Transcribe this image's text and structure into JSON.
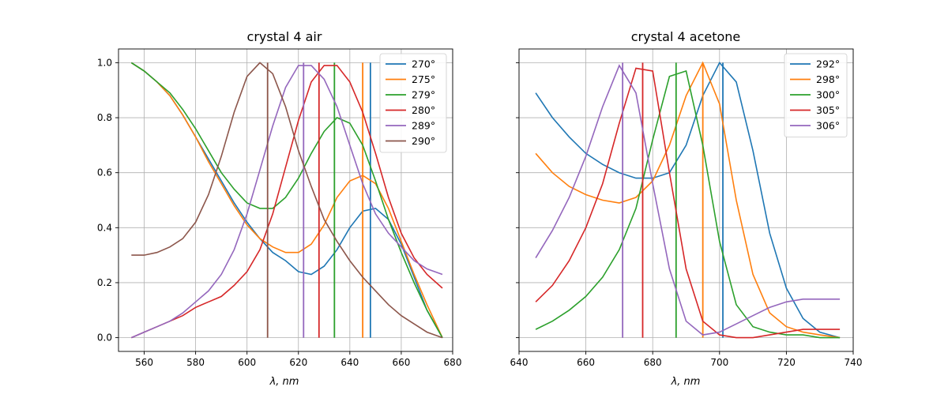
{
  "chart_data": [
    {
      "type": "line",
      "title": "crystal 4 air",
      "xlabel": "λ, nm",
      "ylabel": "",
      "xlim": [
        550,
        680
      ],
      "ylim": [
        -0.05,
        1.05
      ],
      "xticks": [
        560,
        580,
        600,
        620,
        640,
        660,
        680
      ],
      "yticks": [
        0.0,
        0.2,
        0.4,
        0.6,
        0.8,
        1.0
      ],
      "grid": true,
      "legend_position": "top-right",
      "series": [
        {
          "name": "270°",
          "color": "#1f77b4",
          "vline": 648,
          "x": [
            555,
            560,
            565,
            570,
            575,
            580,
            585,
            590,
            595,
            600,
            605,
            610,
            615,
            620,
            625,
            630,
            635,
            640,
            645,
            650,
            655,
            660,
            665,
            670,
            676
          ],
          "y": [
            1.0,
            0.97,
            0.93,
            0.88,
            0.81,
            0.73,
            0.65,
            0.57,
            0.49,
            0.42,
            0.36,
            0.31,
            0.28,
            0.24,
            0.23,
            0.26,
            0.32,
            0.4,
            0.46,
            0.47,
            0.43,
            0.34,
            0.22,
            0.1,
            0.0
          ]
        },
        {
          "name": "275°",
          "color": "#ff7f0e",
          "vline": 645,
          "x": [
            555,
            560,
            565,
            570,
            575,
            580,
            585,
            590,
            595,
            600,
            605,
            610,
            615,
            620,
            625,
            630,
            635,
            640,
            645,
            650,
            655,
            660,
            665,
            670,
            676
          ],
          "y": [
            1.0,
            0.97,
            0.93,
            0.88,
            0.81,
            0.73,
            0.64,
            0.56,
            0.48,
            0.41,
            0.36,
            0.33,
            0.31,
            0.31,
            0.34,
            0.41,
            0.51,
            0.57,
            0.59,
            0.56,
            0.47,
            0.35,
            0.23,
            0.12,
            0.0
          ]
        },
        {
          "name": "279°",
          "color": "#2ca02c",
          "vline": 634,
          "x": [
            555,
            560,
            565,
            570,
            575,
            580,
            585,
            590,
            595,
            600,
            605,
            610,
            615,
            620,
            625,
            630,
            635,
            640,
            645,
            650,
            655,
            660,
            665,
            670,
            676
          ],
          "y": [
            1.0,
            0.97,
            0.93,
            0.89,
            0.83,
            0.76,
            0.68,
            0.6,
            0.54,
            0.49,
            0.47,
            0.47,
            0.51,
            0.58,
            0.67,
            0.75,
            0.8,
            0.78,
            0.7,
            0.57,
            0.43,
            0.31,
            0.2,
            0.1,
            0.0
          ]
        },
        {
          "name": "280°",
          "color": "#d62728",
          "vline": 628,
          "x": [
            555,
            560,
            565,
            570,
            575,
            580,
            585,
            590,
            595,
            600,
            605,
            610,
            615,
            620,
            625,
            630,
            635,
            640,
            645,
            650,
            655,
            660,
            665,
            670,
            676
          ],
          "y": [
            0.0,
            0.02,
            0.04,
            0.06,
            0.08,
            0.11,
            0.13,
            0.15,
            0.19,
            0.24,
            0.32,
            0.45,
            0.62,
            0.79,
            0.93,
            0.99,
            0.99,
            0.93,
            0.82,
            0.67,
            0.51,
            0.38,
            0.29,
            0.23,
            0.18
          ]
        },
        {
          "name": "289°",
          "color": "#9467bd",
          "vline": 622,
          "x": [
            555,
            560,
            565,
            570,
            575,
            580,
            585,
            590,
            595,
            600,
            605,
            610,
            615,
            620,
            625,
            630,
            635,
            640,
            645,
            650,
            655,
            660,
            665,
            670,
            676
          ],
          "y": [
            0.0,
            0.02,
            0.04,
            0.06,
            0.09,
            0.13,
            0.17,
            0.23,
            0.32,
            0.45,
            0.61,
            0.77,
            0.91,
            0.99,
            0.99,
            0.94,
            0.84,
            0.7,
            0.56,
            0.45,
            0.38,
            0.33,
            0.28,
            0.25,
            0.23
          ]
        },
        {
          "name": "290°",
          "color": "#8c564b",
          "vline": 608,
          "x": [
            555,
            560,
            565,
            570,
            575,
            580,
            585,
            590,
            595,
            600,
            605,
            610,
            615,
            620,
            625,
            630,
            635,
            640,
            645,
            650,
            655,
            660,
            665,
            670,
            676
          ],
          "y": [
            0.3,
            0.3,
            0.31,
            0.33,
            0.36,
            0.42,
            0.52,
            0.66,
            0.82,
            0.95,
            1.0,
            0.96,
            0.84,
            0.68,
            0.55,
            0.43,
            0.35,
            0.28,
            0.22,
            0.17,
            0.12,
            0.08,
            0.05,
            0.02,
            0.0
          ]
        }
      ]
    },
    {
      "type": "line",
      "title": "crystal 4 acetone",
      "xlabel": "λ, nm",
      "ylabel": "",
      "xlim": [
        640,
        740
      ],
      "ylim": [
        -0.05,
        1.05
      ],
      "xticks": [
        640,
        660,
        680,
        700,
        720,
        740
      ],
      "yticks": [
        0.0,
        0.2,
        0.4,
        0.6,
        0.8,
        1.0
      ],
      "grid": true,
      "legend_position": "top-right",
      "series": [
        {
          "name": "292°",
          "color": "#1f77b4",
          "vline": 701,
          "x": [
            645,
            650,
            655,
            660,
            665,
            670,
            675,
            680,
            685,
            690,
            695,
            700,
            705,
            710,
            715,
            720,
            725,
            730,
            736
          ],
          "y": [
            0.89,
            0.8,
            0.73,
            0.67,
            0.63,
            0.6,
            0.58,
            0.58,
            0.6,
            0.7,
            0.88,
            1.0,
            0.93,
            0.68,
            0.38,
            0.18,
            0.07,
            0.02,
            0.0
          ]
        },
        {
          "name": "298°",
          "color": "#ff7f0e",
          "vline": 695,
          "x": [
            645,
            650,
            655,
            660,
            665,
            670,
            675,
            680,
            685,
            690,
            695,
            700,
            705,
            710,
            715,
            720,
            725,
            730,
            736
          ],
          "y": [
            0.67,
            0.6,
            0.55,
            0.52,
            0.5,
            0.49,
            0.51,
            0.57,
            0.7,
            0.88,
            1.0,
            0.85,
            0.5,
            0.23,
            0.09,
            0.04,
            0.02,
            0.01,
            0.0
          ]
        },
        {
          "name": "300°",
          "color": "#2ca02c",
          "vline": 687,
          "x": [
            645,
            650,
            655,
            660,
            665,
            670,
            675,
            680,
            685,
            690,
            695,
            700,
            705,
            710,
            715,
            720,
            725,
            730,
            736
          ],
          "y": [
            0.03,
            0.06,
            0.1,
            0.15,
            0.22,
            0.32,
            0.47,
            0.72,
            0.95,
            0.97,
            0.7,
            0.35,
            0.12,
            0.04,
            0.02,
            0.01,
            0.01,
            0.0,
            0.0
          ]
        },
        {
          "name": "305°",
          "color": "#d62728",
          "vline": 677,
          "x": [
            645,
            650,
            655,
            660,
            665,
            670,
            675,
            680,
            685,
            690,
            695,
            700,
            705,
            710,
            715,
            720,
            725,
            730,
            736
          ],
          "y": [
            0.13,
            0.19,
            0.28,
            0.4,
            0.56,
            0.78,
            0.98,
            0.97,
            0.6,
            0.25,
            0.06,
            0.01,
            0.0,
            0.0,
            0.01,
            0.02,
            0.03,
            0.03,
            0.03
          ]
        },
        {
          "name": "306°",
          "color": "#9467bd",
          "vline": 671,
          "x": [
            645,
            650,
            655,
            660,
            665,
            670,
            675,
            680,
            685,
            690,
            695,
            700,
            705,
            710,
            715,
            720,
            725,
            730,
            736
          ],
          "y": [
            0.29,
            0.39,
            0.51,
            0.66,
            0.84,
            0.99,
            0.89,
            0.56,
            0.25,
            0.06,
            0.01,
            0.02,
            0.05,
            0.08,
            0.11,
            0.13,
            0.14,
            0.14,
            0.14
          ]
        }
      ]
    }
  ]
}
